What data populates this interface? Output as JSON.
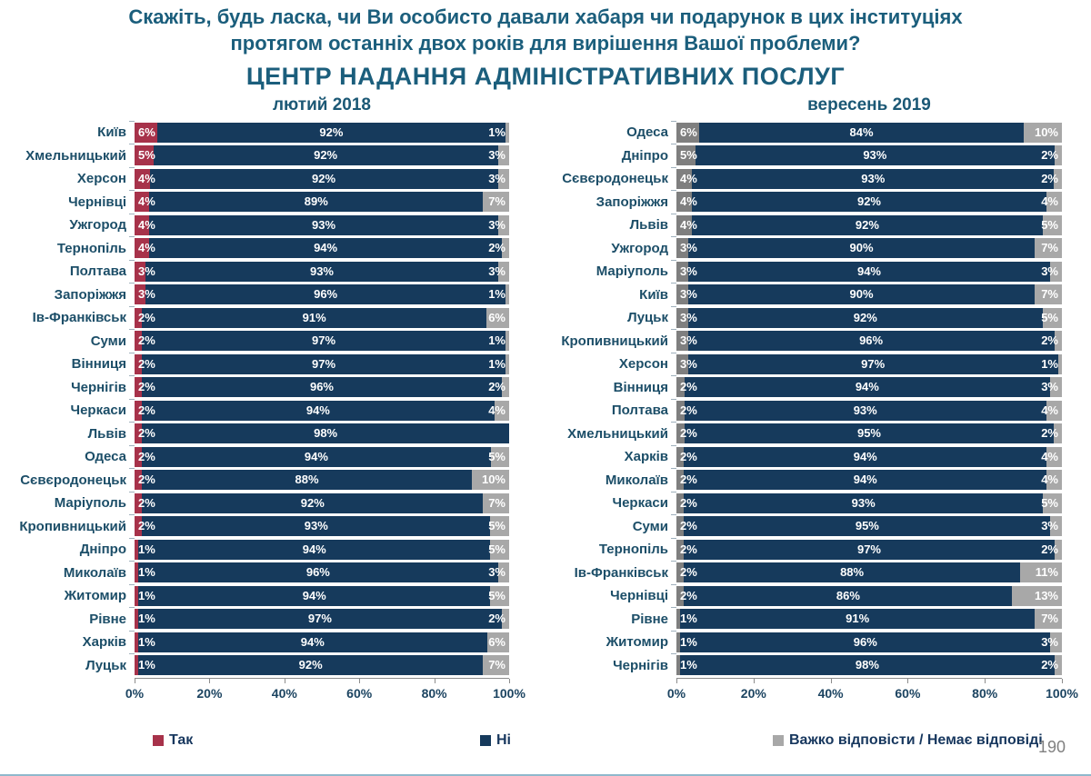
{
  "header": {
    "question_line1": "Скажіть, будь ласка, чи Ви особисто давали хабаря чи подарунок в цих інституціях",
    "question_line2": "протягом останніх двох років для вирішення Вашої проблеми?",
    "subtitle": "ЦЕНТР НАДАННЯ АДМІНІСТРАТИВНИХ ПОСЛУГ"
  },
  "axis_ticks": [
    "0%",
    "20%",
    "40%",
    "60%",
    "80%",
    "100%"
  ],
  "chart_data": [
    {
      "type": "bar",
      "subtype": "horizontal-stacked",
      "title": "лютий 2018",
      "series": [
        "Так",
        "Ні",
        "Важко відповісти / Немає відповіді"
      ],
      "colors": [
        "#A7324A",
        "#163A5C",
        "#A8A8A8"
      ],
      "xlim": [
        0,
        100
      ],
      "rows": [
        [
          "Київ",
          6,
          92,
          1
        ],
        [
          "Хмельницький",
          5,
          92,
          3
        ],
        [
          "Херсон",
          4,
          92,
          3
        ],
        [
          "Чернівці",
          4,
          89,
          7
        ],
        [
          "Ужгород",
          4,
          93,
          3
        ],
        [
          "Тернопіль",
          4,
          94,
          2
        ],
        [
          "Полтава",
          3,
          93,
          3
        ],
        [
          "Запоріжжя",
          3,
          96,
          1
        ],
        [
          "Ів-Франківськ",
          2,
          91,
          6
        ],
        [
          "Суми",
          2,
          97,
          1
        ],
        [
          "Вінниця",
          2,
          97,
          1
        ],
        [
          "Чернігів",
          2,
          96,
          2
        ],
        [
          "Черкаси",
          2,
          94,
          4
        ],
        [
          "Львів",
          2,
          98,
          0
        ],
        [
          "Одеса",
          2,
          94,
          5
        ],
        [
          "Сєвєродонецьк",
          2,
          88,
          10
        ],
        [
          "Маріуполь",
          2,
          92,
          7
        ],
        [
          "Кропивницький",
          2,
          93,
          5
        ],
        [
          "Дніпро",
          1,
          94,
          5
        ],
        [
          "Миколаїв",
          1,
          96,
          3
        ],
        [
          "Житомир",
          1,
          94,
          5
        ],
        [
          "Рівне",
          1,
          97,
          2
        ],
        [
          "Харків",
          1,
          94,
          6
        ],
        [
          "Луцьк",
          1,
          92,
          7
        ]
      ]
    },
    {
      "type": "bar",
      "subtype": "horizontal-stacked",
      "title": "вересень 2019",
      "series": [
        "Так",
        "Ні",
        "Важко відповісти / Немає відповіді"
      ],
      "colors": [
        "#7F7F7F",
        "#163A5C",
        "#A8A8A8"
      ],
      "xlim": [
        0,
        100
      ],
      "rows": [
        [
          "Одеса",
          6,
          84,
          10
        ],
        [
          "Дніпро",
          5,
          93,
          2
        ],
        [
          "Сєвєродонецьк",
          4,
          93,
          2
        ],
        [
          "Запоріжжя",
          4,
          92,
          4
        ],
        [
          "Львів",
          4,
          92,
          5
        ],
        [
          "Ужгород",
          3,
          90,
          7
        ],
        [
          "Маріуполь",
          3,
          94,
          3
        ],
        [
          "Київ",
          3,
          90,
          7
        ],
        [
          "Луцьк",
          3,
          92,
          5
        ],
        [
          "Кропивницький",
          3,
          96,
          2
        ],
        [
          "Херсон",
          3,
          97,
          1
        ],
        [
          "Вінниця",
          2,
          94,
          3
        ],
        [
          "Полтава",
          2,
          93,
          4
        ],
        [
          "Хмельницький",
          2,
          95,
          2
        ],
        [
          "Харків",
          2,
          94,
          4
        ],
        [
          "Миколаїв",
          2,
          94,
          4
        ],
        [
          "Черкаси",
          2,
          93,
          5
        ],
        [
          "Суми",
          2,
          95,
          3
        ],
        [
          "Тернопіль",
          2,
          97,
          2
        ],
        [
          "Ів-Франківськ",
          2,
          88,
          11
        ],
        [
          "Чернівці",
          2,
          86,
          13
        ],
        [
          "Рівне",
          1,
          91,
          7
        ],
        [
          "Житомир",
          1,
          96,
          3
        ],
        [
          "Чернігів",
          1,
          98,
          2
        ]
      ]
    }
  ],
  "legend": {
    "items": [
      {
        "label": "Так",
        "color": "#A7324A"
      },
      {
        "label": "Ні",
        "color": "#163A5C"
      },
      {
        "label": "Важко відповісти / Немає відповіді",
        "color": "#A8A8A8"
      }
    ]
  },
  "footer": {
    "page_number": "190"
  }
}
